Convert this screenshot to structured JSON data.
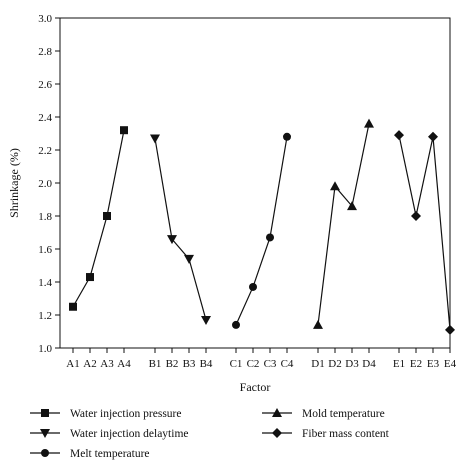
{
  "chart_data": {
    "type": "line",
    "xlabel": "Factor",
    "ylabel": "Shrinkage (%)",
    "ylim": [
      1.0,
      3.0
    ],
    "yticks": [
      "1.0",
      "1.2",
      "1.4",
      "1.6",
      "1.8",
      "2.0",
      "2.2",
      "2.4",
      "2.6",
      "2.8",
      "3.0"
    ],
    "grid": false,
    "legend_position": "bottom",
    "series": [
      {
        "name": "Water injection pressure",
        "marker": "square",
        "categories": [
          "A1",
          "A2",
          "A3",
          "A4"
        ],
        "values": [
          1.25,
          1.43,
          1.8,
          2.32
        ]
      },
      {
        "name": "Water injection delaytime",
        "marker": "triangle-down",
        "categories": [
          "B1",
          "B2",
          "B3",
          "B4"
        ],
        "values": [
          2.27,
          1.66,
          1.54,
          1.17
        ]
      },
      {
        "name": "Melt temperature",
        "marker": "circle",
        "categories": [
          "C1",
          "C2",
          "C3",
          "C4"
        ],
        "values": [
          1.14,
          1.37,
          1.67,
          2.28
        ]
      },
      {
        "name": "Mold temperature",
        "marker": "triangle-up",
        "categories": [
          "D1",
          "D2",
          "D3",
          "D4"
        ],
        "values": [
          1.14,
          1.98,
          1.86,
          2.36
        ]
      },
      {
        "name": "Fiber mass content",
        "marker": "diamond",
        "categories": [
          "E1",
          "E2",
          "E3",
          "E4"
        ],
        "values": [
          2.29,
          1.8,
          2.28,
          1.11
        ]
      }
    ]
  }
}
